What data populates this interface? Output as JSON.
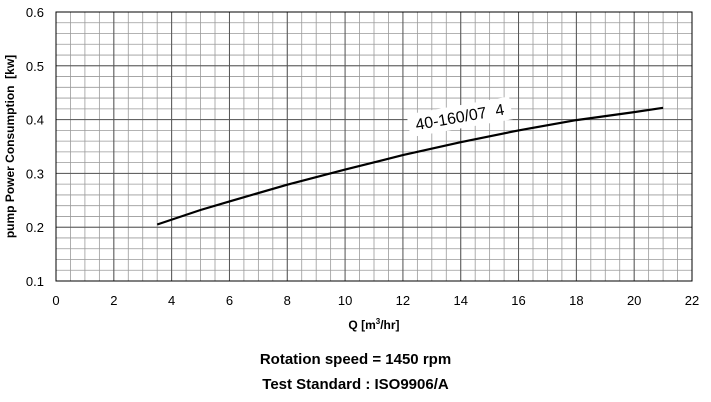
{
  "chart_data": {
    "type": "line",
    "xlabel": "Q [m³/hr]",
    "ylabel": "pump Power Consumption  [kw]",
    "xlim": [
      0,
      22
    ],
    "ylim": [
      0.1,
      0.6
    ],
    "x_ticks": [
      "0",
      "2",
      "4",
      "6",
      "8",
      "10",
      "12",
      "14",
      "16",
      "18",
      "20",
      "22"
    ],
    "y_ticks": [
      "0.1",
      "0.2",
      "0.3",
      "0.4",
      "0.5",
      "0.6"
    ],
    "grid": true,
    "series": [
      {
        "name": "40-160/07  4",
        "color": "#000000",
        "x": [
          3.5,
          5,
          6,
          8,
          10,
          12,
          14,
          16,
          18,
          20,
          21
        ],
        "y": [
          0.205,
          0.232,
          0.248,
          0.279,
          0.307,
          0.334,
          0.358,
          0.38,
          0.399,
          0.414,
          0.422
        ]
      }
    ]
  },
  "footer": {
    "line1": "Rotation speed = 1450 rpm",
    "line2": "Test Standard : ISO9906/A"
  }
}
